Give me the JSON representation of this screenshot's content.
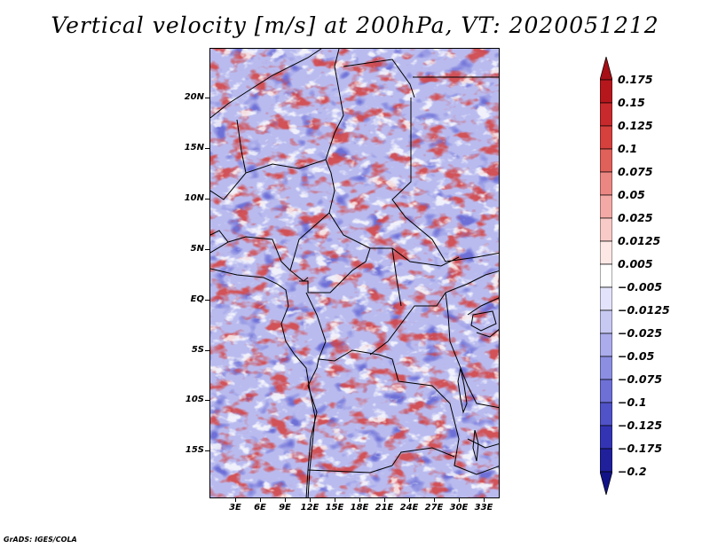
{
  "title": "Vertical velocity [m/s] at 200hPa, VT: 2020051212",
  "footer": "GrADS: IGES/COLA",
  "map": {
    "variable": "Vertical velocity",
    "units": "m/s",
    "level": "200hPa",
    "valid_time": "2020051212",
    "lat_labels": [
      "20N",
      "15N",
      "10N",
      "5N",
      "EQ",
      "5S",
      "10S",
      "15S"
    ],
    "lon_labels": [
      "3E",
      "6E",
      "9E",
      "12E",
      "15E",
      "18E",
      "21E",
      "24E",
      "27E",
      "30E",
      "33E"
    ]
  },
  "colorbar": {
    "labels": [
      "0.175",
      "0.15",
      "0.125",
      "0.1",
      "0.075",
      "0.05",
      "0.025",
      "0.0125",
      "0.005",
      "−0.005",
      "−0.0125",
      "−0.025",
      "−0.05",
      "−0.075",
      "−0.1",
      "−0.125",
      "−0.175",
      "−0.2"
    ],
    "colors": [
      "#a50f15",
      "#b5171d",
      "#c8292c",
      "#d6403d",
      "#e0605a",
      "#eb8783",
      "#f3aaa6",
      "#f8cbc8",
      "#fde8e6",
      "#ffffff",
      "#e3e3fb",
      "#c7c9f2",
      "#aaaceb",
      "#8c8ee2",
      "#6e70d6",
      "#5052c7",
      "#3334b4",
      "#20209b",
      "#121287"
    ]
  }
}
